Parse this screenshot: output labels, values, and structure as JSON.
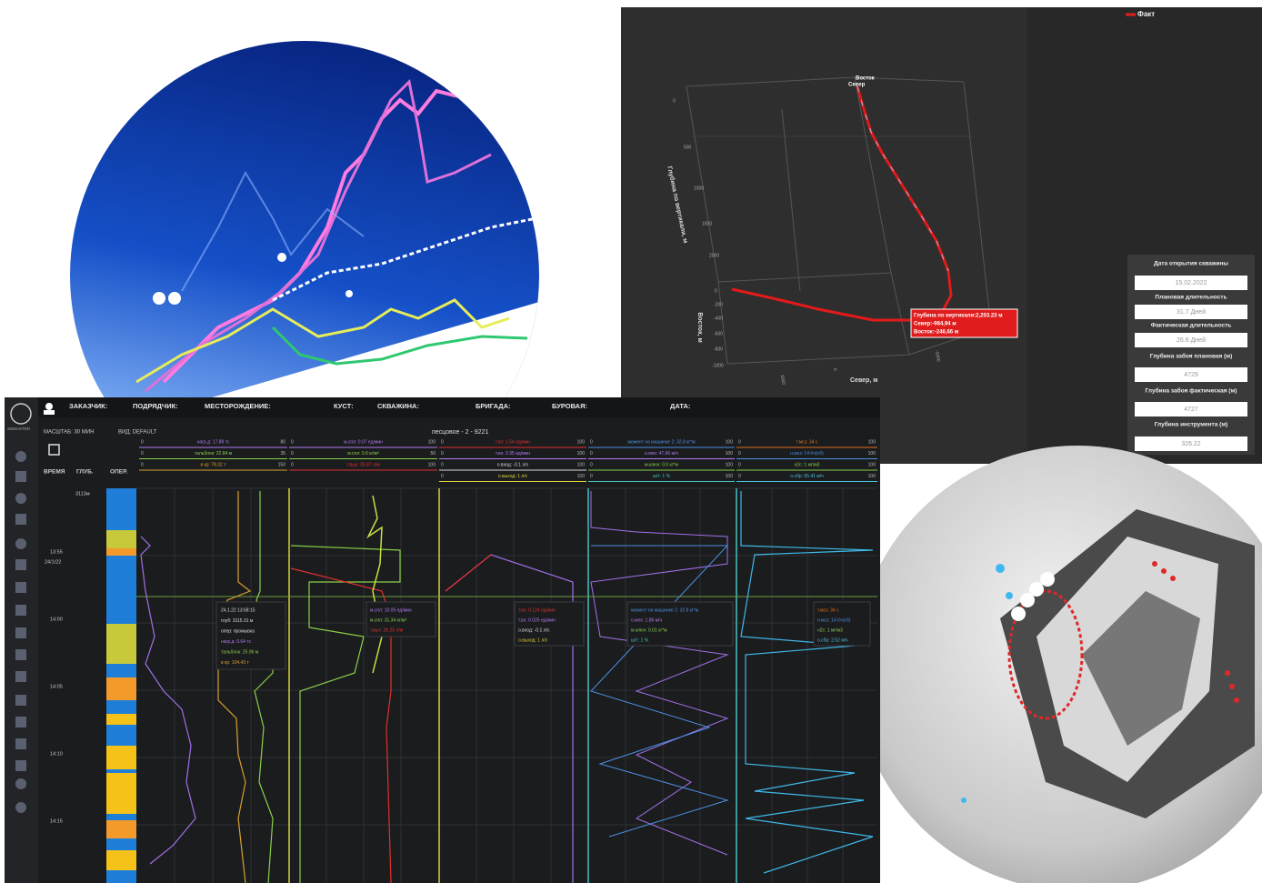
{
  "panel_3d": {
    "legend": "Факт",
    "marker_east": "Восток",
    "marker_north": "Север",
    "axis_z": "Глубина по вертикали, м",
    "z_ticks": [
      "0",
      "500",
      "1000",
      "1500",
      "2000"
    ],
    "axis_east": "Восток, м",
    "east_ticks": [
      "0",
      "-200",
      "-400",
      "-600",
      "-800",
      "-1000"
    ],
    "axis_north": "Север, м",
    "north_ticks": [
      "1000",
      "0",
      "-1000"
    ],
    "tooltip": [
      "Глубина по вертикали:2,203.23 м",
      "Север:-984,94 м",
      "Восток:-246,66 м"
    ],
    "info": [
      {
        "label": "Дата открытия скважины",
        "value": "15.02.2022"
      },
      {
        "label": "Плановая длительность",
        "value": "31.7 Дней"
      },
      {
        "label": "Фактическая длительность",
        "value": "26.6 Дней"
      },
      {
        "label": "Глубина забоя плановая (м)",
        "value": "4729"
      },
      {
        "label": "Глубина забоя фактическая (м)",
        "value": "4727"
      },
      {
        "label": "Глубина инструмента (м)",
        "value": "326.22"
      }
    ]
  },
  "dashboard": {
    "logo": "SNMASTER",
    "header": [
      "ЗАКАЗЧИК:",
      "ПОДРЯДЧИК:",
      "МЕСТОРОЖДЕНИЕ:",
      "КУСТ:",
      "СКВАЖИНА:",
      "БРИГАДА:",
      "БУРОВАЯ:",
      "ДАТА:"
    ],
    "scale": "МАСШТАБ: 30 МИН",
    "view": "ВИД: DEFAULT",
    "well": "песцовое - 2 - 9221",
    "columns": [
      "ВРЕМЯ",
      "ГЛУБ.",
      "ОПЕР."
    ],
    "depth": "3113м",
    "date": "24/1/22",
    "times": [
      "13:55",
      "14:00",
      "14:05",
      "14:10",
      "14:15"
    ],
    "tracks": [
      {
        "color": "#b07cf0",
        "rows": [
          {
            "min": "0",
            "label": "нагр.д: 17.89 тс",
            "max": "80",
            "color": "#b07cf0"
          },
          {
            "min": "0",
            "label": "тальблок: 22.84 м",
            "max": "35",
            "color": "#8ad04a"
          },
          {
            "min": "0",
            "label": "в кр: 78.32 т",
            "max": "150",
            "color": "#d8a030"
          }
        ]
      },
      {
        "color": "#e03030",
        "rows": [
          {
            "min": "0",
            "label": "м.спл: 0.07 ед/мин",
            "max": "100",
            "color": "#b07cf0"
          },
          {
            "min": "0",
            "label": "м.спл: 0.6 кг/м³",
            "max": "50",
            "color": "#8ad04a"
          },
          {
            "min": "0",
            "label": "т.вых: 26.87 л/м",
            "max": "100",
            "color": "#e03030"
          }
        ]
      },
      {
        "color": "#e03030",
        "rows": [
          {
            "min": "0",
            "label": "т.вх: 1.54 ед/мин",
            "max": "100",
            "color": "#e03030"
          },
          {
            "min": "0",
            "label": "т.вх: 2.35 ед/мин",
            "max": "100",
            "color": "#b07cf0"
          },
          {
            "min": "0",
            "label": "о.вход: -0.1 л/с",
            "max": "100",
            "color": "#dddddd"
          },
          {
            "min": "0",
            "label": "о.выход: 1 л/с",
            "max": "100",
            "color": "#e0d040"
          }
        ]
      },
      {
        "color": "#4a90e0",
        "rows": [
          {
            "min": "0",
            "label": "момент на машинке 2: 32.8 кг*м",
            "max": "100",
            "color": "#4a90e0"
          },
          {
            "min": "0",
            "label": "о.мех: 47.96 м/ч",
            "max": "100",
            "color": "#b07cf0"
          },
          {
            "min": "0",
            "label": "м.ключ: 0.0 кг*м",
            "max": "100",
            "color": "#8ad04a"
          },
          {
            "min": "0",
            "label": "ш/т: 1 %",
            "max": "100",
            "color": "#4ac0c0"
          }
        ]
      },
      {
        "color": "#e07020",
        "rows": [
          {
            "min": "0",
            "label": "т.мсз: 34 с",
            "max": "100",
            "color": "#e07020"
          },
          {
            "min": "0",
            "label": "н.мсз: 14 t/ч(об)",
            "max": "100",
            "color": "#4a90e0"
          },
          {
            "min": "0",
            "label": "н2с: 1 мг/м3",
            "max": "100",
            "color": "#8ad04a"
          },
          {
            "min": "0",
            "label": "о.сбр: 65.41 м/ч",
            "max": "100",
            "color": "#4ac0e0"
          }
        ]
      }
    ],
    "cursor_tooltip": [
      "24.1.22 13:58:15",
      "глуб: 3115.31 м",
      "опер: промывка",
      "нагр.д: 0.64 тс",
      "тальблок: 25.96 м",
      "в кр: 104.43 т"
    ],
    "track_tooltips": [
      [
        "м.спл: 10.05 ед/мин",
        "м.спл: 31.34 кг/м³",
        "т.вых: 26.25 л/м"
      ],
      [
        "т.вх: 0.124 ед/мин",
        "т.вх: 0.025 ед/мин",
        "о.вход: -0.1 л/с",
        "о.выход: 1 л/с"
      ],
      [
        "момент на машинке 2: 32.8 кг*м",
        "о.мех: 1.86 м/ч",
        "м.ключ: 0.01 кг*м",
        "ш/т: 1 %"
      ],
      [
        "т.мсз: 34 с",
        "н.мсз: 14 t/ч(об)",
        "н2с: 1 мг/м3",
        "о.сбр: 2.52 м/ч"
      ]
    ]
  }
}
